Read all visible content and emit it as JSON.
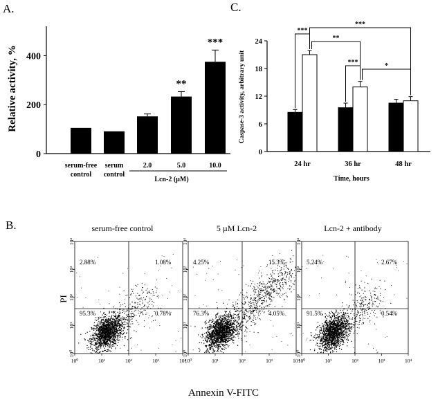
{
  "panel_labels": {
    "a": "A.",
    "b": "B.",
    "c": "C."
  },
  "chart_data": [
    {
      "id": "panel_a",
      "type": "bar",
      "title": "",
      "ylabel": "Relative activity, %",
      "xlabel": "",
      "ylim": [
        0,
        520
      ],
      "yticks": [
        0,
        200,
        400
      ],
      "categories": [
        {
          "line1": "serum-free",
          "line2": "control"
        },
        {
          "line1": "serum",
          "line2": "control"
        },
        {
          "line1": "2.0",
          "line2": ""
        },
        {
          "line1": "5.0",
          "line2": ""
        },
        {
          "line1": "10.0",
          "line2": ""
        }
      ],
      "values": [
        105,
        91,
        152,
        233,
        375
      ],
      "errors": [
        0,
        0,
        10,
        20,
        48
      ],
      "significance": [
        "",
        "",
        "",
        "**",
        "***"
      ],
      "group_label": "Lcn-2 (µM)",
      "bar_color": "#000000"
    },
    {
      "id": "panel_c",
      "type": "bar",
      "title": "",
      "ylabel": "Caspase-3 activity, arbitrary unit",
      "xlabel": "Time, hours",
      "ylim": [
        0,
        24
      ],
      "yticks": [
        0,
        6,
        12,
        18,
        24
      ],
      "categories": [
        "24 hr",
        "36 hr",
        "48 hr"
      ],
      "series": [
        {
          "name": "filled",
          "color": "#000000",
          "values": [
            8.5,
            9.5,
            10.5
          ],
          "errors": [
            0.6,
            1.0,
            0.8
          ]
        },
        {
          "name": "open",
          "color": "#ffffff",
          "values": [
            21.0,
            14.0,
            11.0
          ],
          "errors": [
            0.9,
            1.2,
            0.9
          ]
        }
      ],
      "comparisons": [
        {
          "from": [
            0,
            0
          ],
          "to": [
            0,
            1
          ],
          "label": "***"
        },
        {
          "from": [
            0,
            1
          ],
          "to": [
            1,
            1
          ],
          "label": "**"
        },
        {
          "from": [
            0,
            1
          ],
          "to": [
            2,
            1
          ],
          "label": "***"
        },
        {
          "from": [
            1,
            0
          ],
          "to": [
            1,
            1
          ],
          "label": "***"
        },
        {
          "from": [
            1,
            1
          ],
          "to": [
            2,
            1
          ],
          "label": "*"
        }
      ]
    },
    {
      "id": "panel_b",
      "type": "scatter",
      "xlabel": "Annexin V-FITC",
      "ylabel": "PI",
      "axis_scale": "log",
      "xlim": [
        1,
        10000
      ],
      "ylim": [
        1,
        10000
      ],
      "tick_labels": [
        "10⁰",
        "10¹",
        "10²",
        "10³",
        "10⁴"
      ],
      "gate_x": 100,
      "gate_y": 40,
      "plots": [
        {
          "title": "serum-free control",
          "quadrants": {
            "upper_left": "2.88%",
            "upper_right": "1.08%",
            "lower_left": "95.3%",
            "lower_right": "0.78%"
          }
        },
        {
          "title": "5 µM Lcn-2",
          "quadrants": {
            "upper_left": "4.25%",
            "upper_right": "15.3%",
            "lower_left": "76.3%",
            "lower_right": "4.05%"
          }
        },
        {
          "title": "Lcn-2 + antibody",
          "quadrants": {
            "upper_left": "5.24%",
            "upper_right": "2.67%",
            "lower_left": "91.5%",
            "lower_right": "0.54%"
          }
        }
      ]
    }
  ]
}
